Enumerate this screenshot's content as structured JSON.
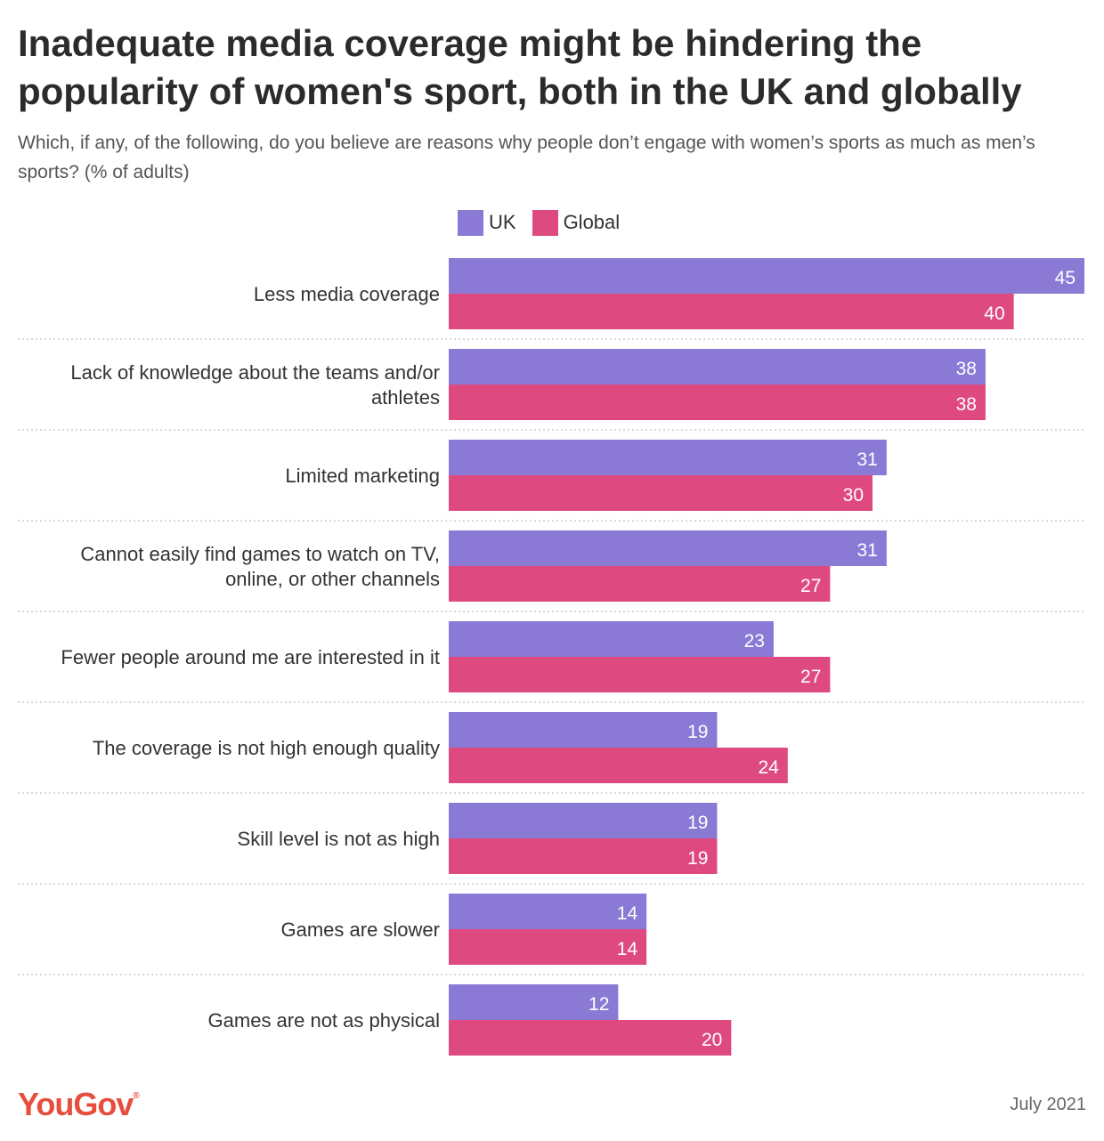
{
  "title": "Inadequate media coverage might be hindering the popularity of women's sport, both in the UK and globally",
  "subtitle": "Which, if any, of the following, do you believe are reasons why people don’t engage with women’s sports as much as men’s sports? (% of adults)",
  "brand": "YouGov",
  "brand_mark": "®",
  "date": "July 2021",
  "colors": {
    "uk": "#8a7ad6",
    "global": "#de4a80",
    "label_text": "#ffffff",
    "category_text": "#333333",
    "divider": "#cccccc"
  },
  "chart_data": {
    "type": "bar",
    "orientation": "horizontal",
    "title": "Inadequate media coverage might be hindering the popularity of women's sport, both in the UK and globally",
    "categories": [
      "Less media coverage",
      "Lack of knowledge about the teams and/or athletes",
      "Limited marketing",
      "Cannot easily find games to watch on TV, online, or other channels",
      "Fewer people around me are interested in it",
      "The coverage is not high enough quality",
      "Skill level is not as high",
      "Games are slower",
      "Games are not as physical"
    ],
    "series": [
      {
        "name": "UK",
        "values": [
          45,
          38,
          31,
          31,
          23,
          19,
          19,
          14,
          12
        ]
      },
      {
        "name": "Global",
        "values": [
          40,
          38,
          30,
          27,
          27,
          24,
          19,
          14,
          20
        ]
      }
    ],
    "xlim": [
      0,
      45
    ],
    "xlabel": "",
    "ylabel": "",
    "legend": "top",
    "grid": false
  }
}
